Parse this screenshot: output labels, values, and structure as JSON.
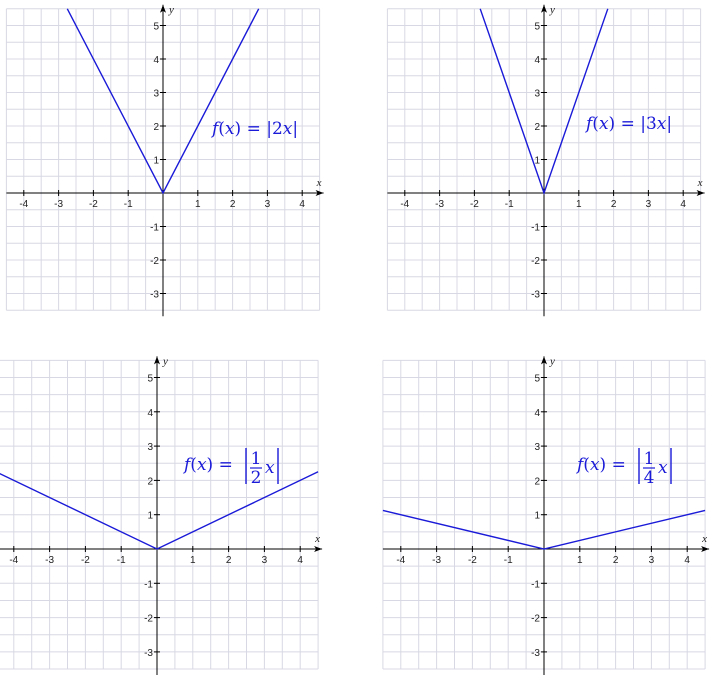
{
  "colors": {
    "curve": "#1a1ad8",
    "grid": "#d8d8e4",
    "axis": "#000000",
    "equation": "#1a1ad8"
  },
  "chart_data": [
    {
      "type": "line",
      "function": "abs",
      "slope": 2,
      "equation": "f(x) = |2x|",
      "xlabel": "x",
      "ylabel": "y",
      "x_ticks": [
        -4,
        -3,
        -2,
        -1,
        1,
        2,
        3,
        4
      ],
      "y_ticks": [
        -3,
        -2,
        -1,
        1,
        2,
        3,
        4,
        5
      ],
      "xlim": [
        -4.5,
        4.5
      ],
      "ylim": [
        -3.5,
        5.5
      ],
      "grid": true,
      "series": [
        {
          "x": [
            -2.75,
            0,
            2.75
          ],
          "y": [
            5.5,
            0,
            5.5
          ]
        }
      ]
    },
    {
      "type": "line",
      "function": "abs",
      "slope": 3,
      "equation": "f(x) = |3x|",
      "xlabel": "x",
      "ylabel": "y",
      "x_ticks": [
        -4,
        -3,
        -2,
        -1,
        1,
        2,
        3,
        4
      ],
      "y_ticks": [
        -3,
        -2,
        -1,
        1,
        2,
        3,
        4,
        5
      ],
      "xlim": [
        -4.5,
        4.5
      ],
      "ylim": [
        -3.5,
        5.5
      ],
      "grid": true,
      "series": [
        {
          "x": [
            -1.833,
            0,
            1.833
          ],
          "y": [
            5.5,
            0,
            5.5
          ]
        }
      ]
    },
    {
      "type": "line",
      "function": "abs",
      "slope": 0.5,
      "equation": "f(x) = |(1/2)x|",
      "xlabel": "x",
      "ylabel": "y",
      "x_ticks": [
        -4,
        -3,
        -2,
        -1,
        1,
        2,
        3,
        4
      ],
      "y_ticks": [
        -3,
        -2,
        -1,
        1,
        2,
        3,
        4,
        5
      ],
      "xlim": [
        -4.5,
        4.5
      ],
      "ylim": [
        -3.5,
        5.5
      ],
      "grid": true,
      "series": [
        {
          "x": [
            -4.5,
            0,
            4.5
          ],
          "y": [
            2.25,
            0,
            2.25
          ]
        }
      ]
    },
    {
      "type": "line",
      "function": "abs",
      "slope": 0.25,
      "equation": "f(x) = |(1/4)x|",
      "xlabel": "x",
      "ylabel": "y",
      "x_ticks": [
        -4,
        -3,
        -2,
        -1,
        1,
        2,
        3,
        4
      ],
      "y_ticks": [
        -3,
        -2,
        -1,
        1,
        2,
        3,
        4,
        5
      ],
      "xlim": [
        -4.5,
        4.5
      ],
      "ylim": [
        -3.5,
        5.5
      ],
      "grid": true,
      "series": [
        {
          "x": [
            -4.5,
            0,
            4.5
          ],
          "y": [
            1.125,
            0,
            1.125
          ]
        }
      ]
    }
  ]
}
